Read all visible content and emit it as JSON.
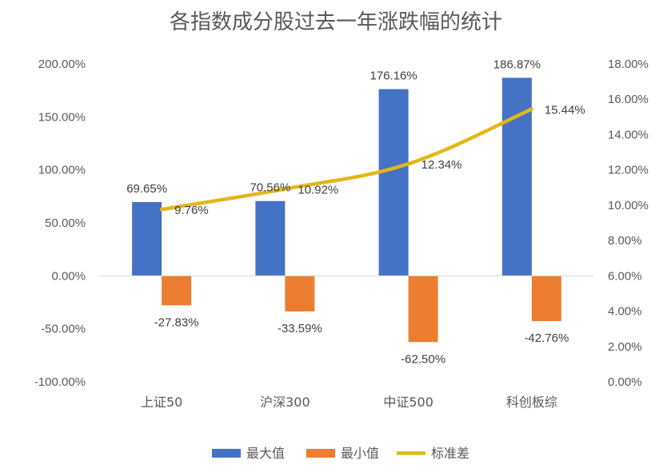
{
  "chart_data": {
    "type": "bar",
    "title": "各指数成分股过去一年涨跌幅的统计",
    "categories": [
      "上证50",
      "沪深300",
      "中证500",
      "科创板综"
    ],
    "series": [
      {
        "name": "最大值",
        "kind": "bar",
        "axis": "left",
        "color": "#4472C4",
        "values": [
          69.65,
          70.56,
          176.16,
          186.87
        ],
        "labels": [
          "69.65%",
          "70.56%",
          "176.16%",
          "186.87%"
        ]
      },
      {
        "name": "最小值",
        "kind": "bar",
        "axis": "left",
        "color": "#ED7D31",
        "values": [
          -27.83,
          -33.59,
          -62.5,
          -42.76
        ],
        "labels": [
          "-27.83%",
          "-33.59%",
          "-62.50%",
          "-42.76%"
        ]
      },
      {
        "name": "标准差",
        "kind": "line",
        "axis": "right",
        "color": "#E3B719",
        "values": [
          9.76,
          10.92,
          12.34,
          15.44
        ],
        "labels": [
          "9.76%",
          "10.92%",
          "12.34%",
          "15.44%"
        ]
      }
    ],
    "y_left": {
      "min": -100,
      "max": 200,
      "step": 50,
      "tick_labels": [
        "-100.00%",
        "-50.00%",
        "0.00%",
        "50.00%",
        "100.00%",
        "150.00%",
        "200.00%"
      ]
    },
    "y_right": {
      "min": 0,
      "max": 18,
      "step": 2,
      "tick_labels": [
        "0.00%",
        "2.00%",
        "4.00%",
        "6.00%",
        "8.00%",
        "10.00%",
        "12.00%",
        "14.00%",
        "16.00%",
        "18.00%"
      ]
    },
    "legend_position": "bottom",
    "grid": false
  }
}
